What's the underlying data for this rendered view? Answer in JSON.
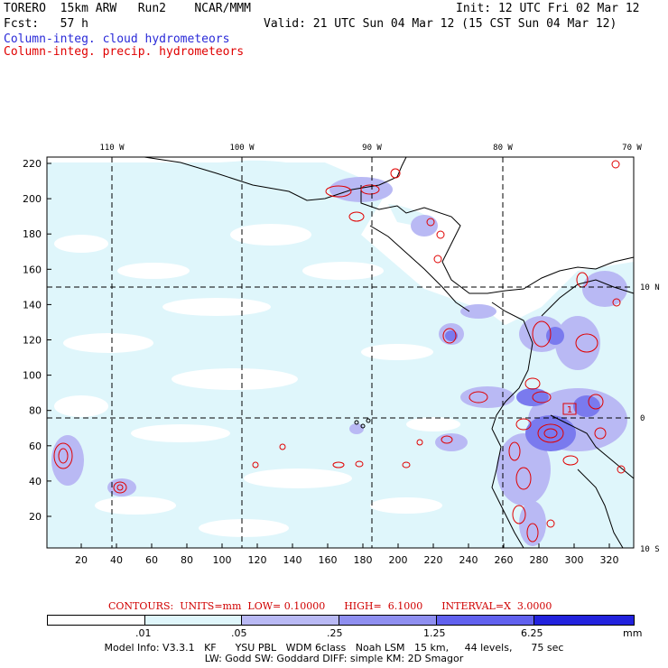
{
  "header": {
    "line1_left": "TORERO  15km ARW   Run2    NCAR/MMM",
    "line1_right": "Init: 12 UTC Fri 02 Mar 12",
    "line2_left": "Fcst:   57 h",
    "line2_right": "Valid: 21 UTC Sun 04 Mar 12 (15 CST Sun 04 Mar 12)",
    "legend_cloud": "Column-integ. cloud hydrometeors",
    "legend_precip": "Column-integ. precip. hydrometeors"
  },
  "colors": {
    "cloud_text": "#2a2ad8",
    "precip_text": "#e00000",
    "ocean_bg": "#ffffff",
    "shade1": "#dff6fb",
    "shade2": "#b9b9f4",
    "shade3": "#8f8ff0",
    "shade4": "#6161ee",
    "shade5": "#2222dd",
    "contour": "#e00000",
    "coast": "#000000"
  },
  "map": {
    "top_lon_labels": [
      "110 W",
      "100 W",
      "90 W",
      "80 W",
      "70 W"
    ],
    "right_lat_labels": [
      "10 N",
      "0",
      "10 S"
    ],
    "y_ticks": [
      "220",
      "200",
      "180",
      "160",
      "140",
      "120",
      "100",
      "80",
      "60",
      "40",
      "20"
    ],
    "x_ticks": [
      "20",
      "40",
      "60",
      "80",
      "100",
      "120",
      "140",
      "160",
      "180",
      "200",
      "220",
      "240",
      "260",
      "280",
      "300",
      "320"
    ],
    "station_label": "1"
  },
  "contours_line": "CONTOURS:  UNITS=mm  LOW= 0.10000      HIGH=  6.1000      INTERVAL=X  3.0000",
  "colorbar": {
    "labels": [
      ".01",
      ".05",
      ".25",
      "1.25",
      "6.25",
      "mm"
    ]
  },
  "footer": {
    "line1": "Model Info: V3.3.1   KF      YSU PBL   WDM 6class   Noah LSM   15 km,     44 levels,      75 sec",
    "line2": "LW: Godd SW: Goddard DIFF: simple KM: 2D Smagor"
  }
}
